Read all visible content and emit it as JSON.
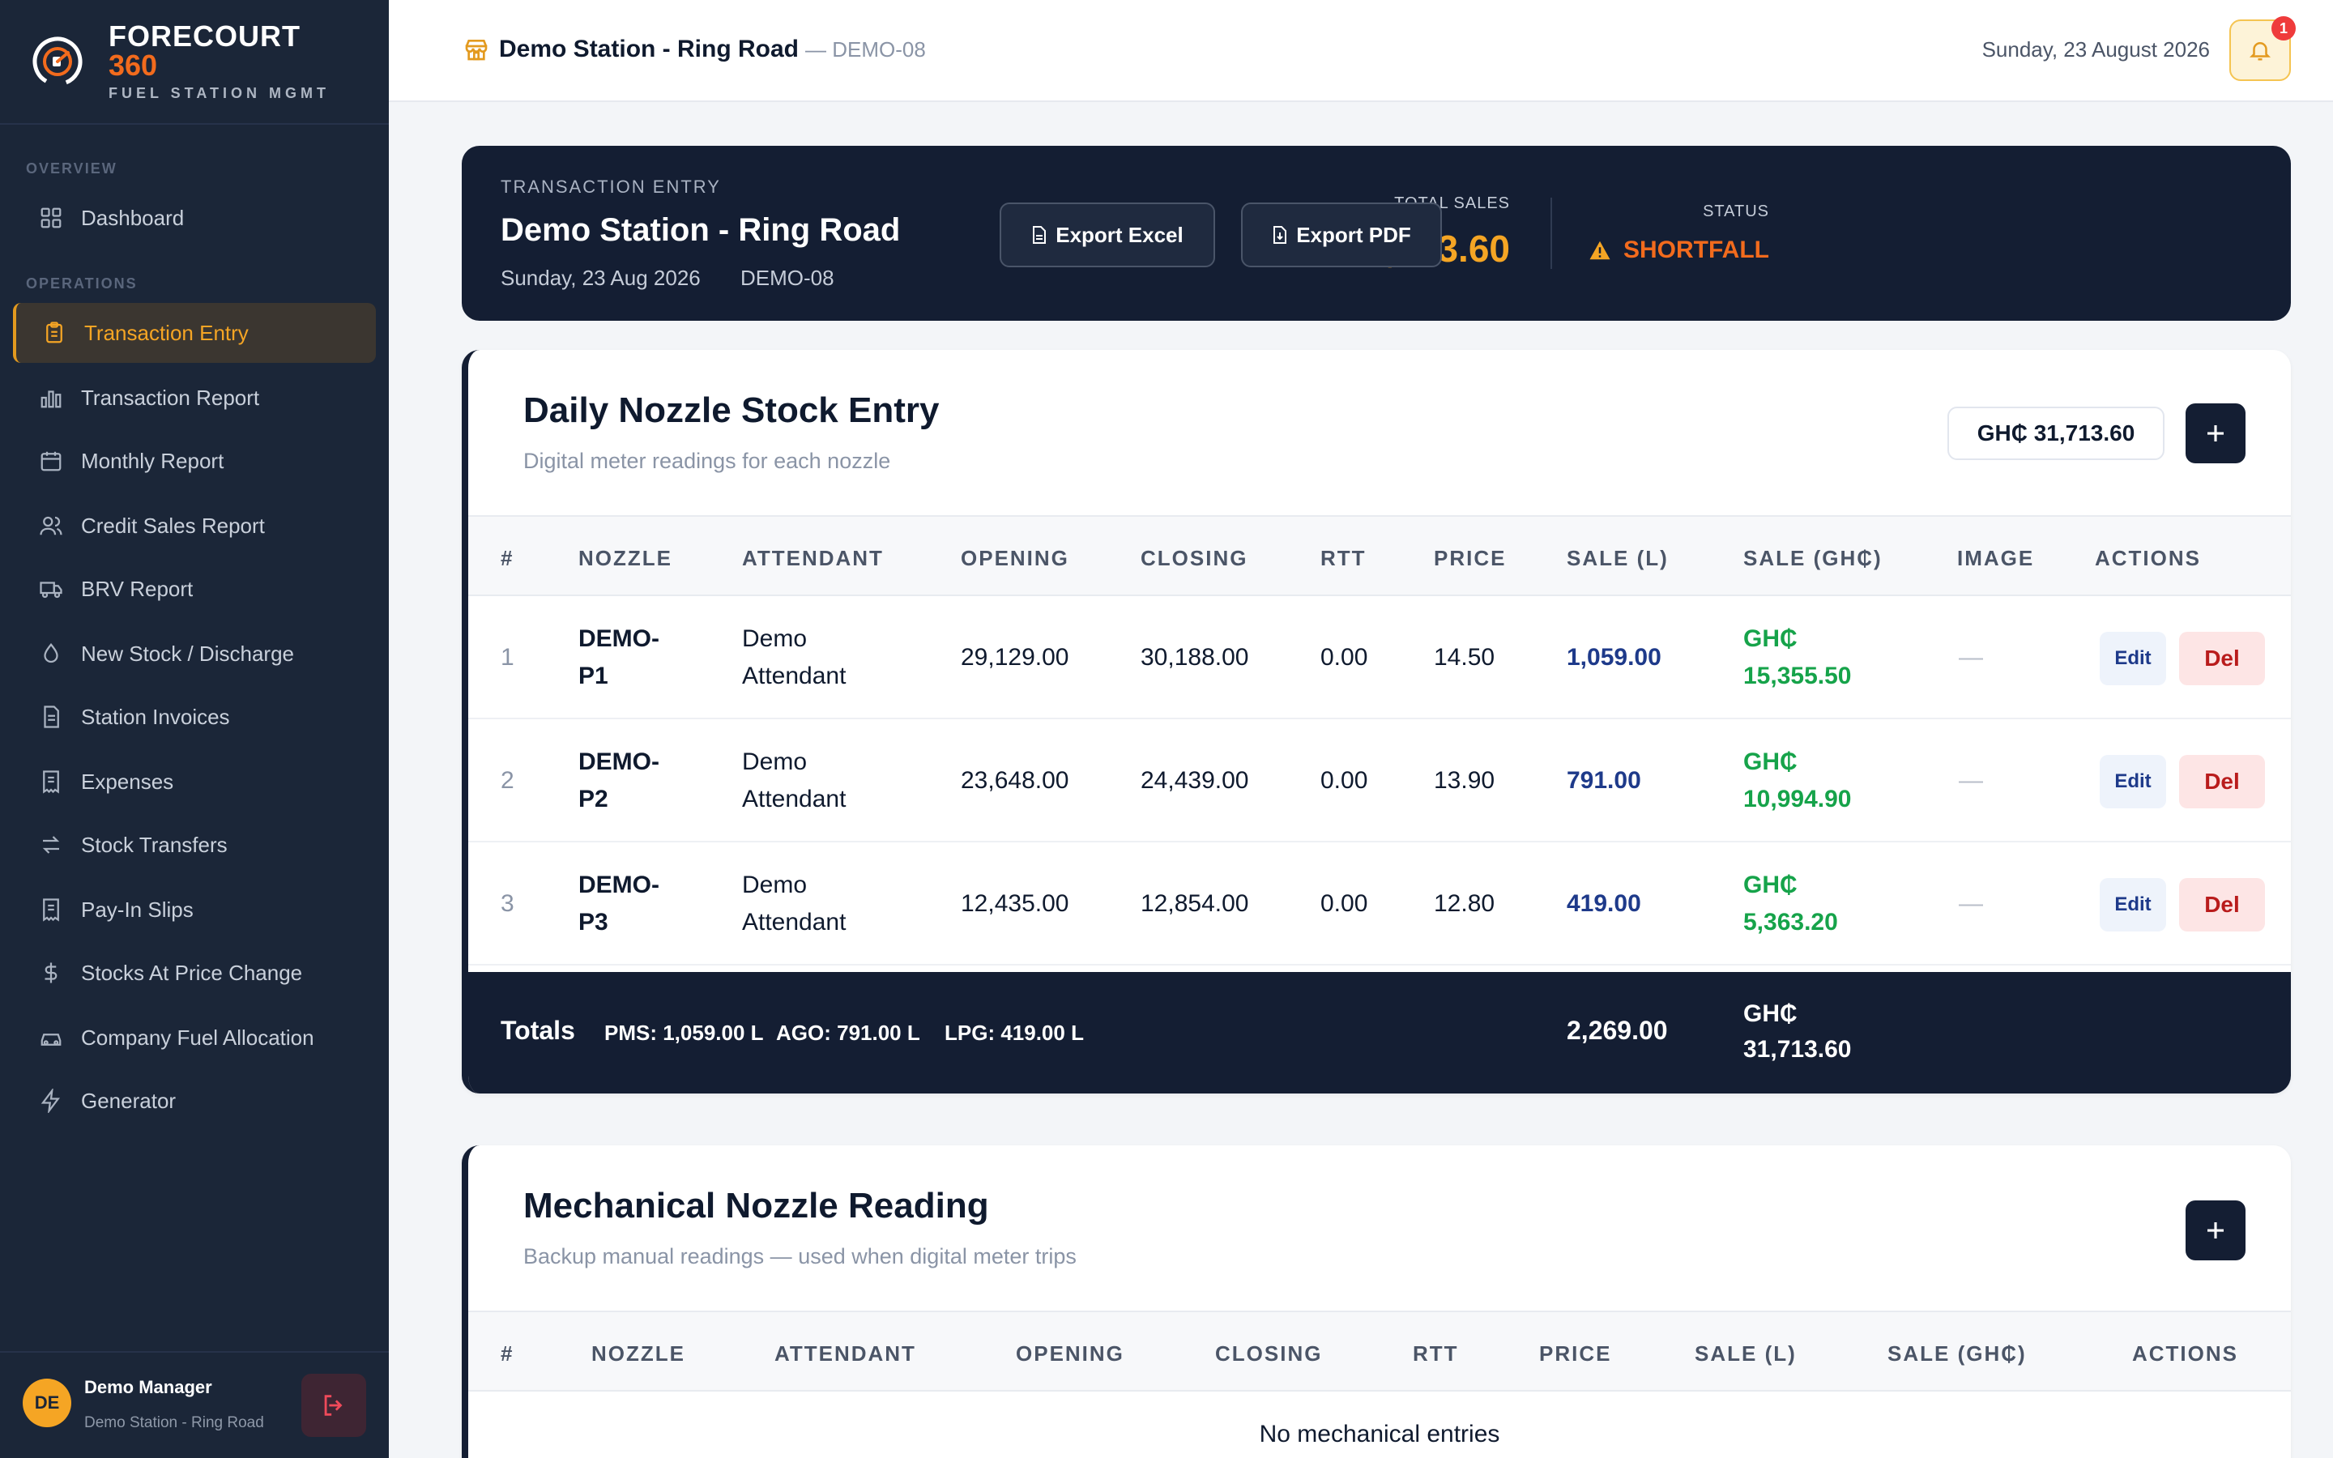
{
  "brand": {
    "name_line1": "FORECOURT",
    "name_line2": "360",
    "tagline": "FUEL STATION MGMT",
    "accent": "#f26b1d"
  },
  "sidebar": {
    "sections": {
      "overview": "OVERVIEW",
      "operations": "OPERATIONS"
    },
    "items": [
      {
        "label": "Dashboard",
        "icon": "grid-icon"
      },
      {
        "label": "Transaction Entry",
        "icon": "clipboard-icon",
        "active": true
      },
      {
        "label": "Transaction Report",
        "icon": "bar-chart-icon"
      },
      {
        "label": "Monthly Report",
        "icon": "calendar-icon"
      },
      {
        "label": "Credit Sales Report",
        "icon": "users-icon"
      },
      {
        "label": "BRV Report",
        "icon": "truck-icon"
      },
      {
        "label": "New Stock / Discharge",
        "icon": "droplet-icon"
      },
      {
        "label": "Station Invoices",
        "icon": "file-icon"
      },
      {
        "label": "Expenses",
        "icon": "receipt-icon"
      },
      {
        "label": "Stock Transfers",
        "icon": "transfer-icon"
      },
      {
        "label": "Pay-In Slips",
        "icon": "receipt-icon"
      },
      {
        "label": "Stocks At Price Change",
        "icon": "dollar-icon"
      },
      {
        "label": "Company Fuel Allocation",
        "icon": "car-icon"
      },
      {
        "label": "Generator",
        "icon": "lightning-icon"
      }
    ]
  },
  "user": {
    "initials": "DE",
    "name": "Demo Manager",
    "station": "Demo Station - Ring Road"
  },
  "topbar": {
    "station": "Demo Station - Ring Road",
    "code": "— DEMO-08",
    "date": "Sunday, 23 August 2026",
    "notifications": "1"
  },
  "hero": {
    "label": "TRANSACTION ENTRY",
    "title": "Demo Station - Ring Road",
    "date": "Sunday, 23 Aug 2026",
    "code": "DEMO-08",
    "total_sales_label": "TOTAL SALES",
    "total_sales": "GH₵ 31,713.60",
    "status_label": "STATUS",
    "status": "SHORTFALL",
    "export_excel": "Export Excel",
    "export_pdf": "Export PDF"
  },
  "daily": {
    "title": "Daily Nozzle Stock Entry",
    "subtitle": "Digital meter readings for each nozzle",
    "total_pill": "GH₵ 31,713.60",
    "columns": [
      "#",
      "NOZZLE",
      "ATTENDANT",
      "OPENING",
      "CLOSING",
      "RTT",
      "PRICE",
      "SALE (L)",
      "SALE (GH₵)",
      "IMAGE",
      "ACTIONS"
    ],
    "rows": [
      {
        "idx": "1",
        "nozzle_a": "DEMO-",
        "nozzle_b": "P1",
        "att_a": "Demo",
        "att_b": "Attendant",
        "opening": "29,129.00",
        "closing": "30,188.00",
        "rtt": "0.00",
        "price": "14.50",
        "sale_l": "1,059.00",
        "ghs_a": "GH₵",
        "ghs_b": "15,355.50",
        "image": "—"
      },
      {
        "idx": "2",
        "nozzle_a": "DEMO-",
        "nozzle_b": "P2",
        "att_a": "Demo",
        "att_b": "Attendant",
        "opening": "23,648.00",
        "closing": "24,439.00",
        "rtt": "0.00",
        "price": "13.90",
        "sale_l": "791.00",
        "ghs_a": "GH₵",
        "ghs_b": "10,994.90",
        "image": "—"
      },
      {
        "idx": "3",
        "nozzle_a": "DEMO-",
        "nozzle_b": "P3",
        "att_a": "Demo",
        "att_b": "Attendant",
        "opening": "12,435.00",
        "closing": "12,854.00",
        "rtt": "0.00",
        "price": "12.80",
        "sale_l": "419.00",
        "ghs_a": "GH₵",
        "ghs_b": "5,363.20",
        "image": "—"
      }
    ],
    "actions": {
      "edit": "Edit",
      "del": "Del"
    },
    "totals": {
      "label": "Totals",
      "pms": "PMS: 1,059.00 L",
      "ago": "AGO: 791.00 L",
      "lpg": "LPG: 419.00 L",
      "sale_l": "2,269.00",
      "ghs_a": "GH₵",
      "ghs_b": "31,713.60"
    }
  },
  "mechanical": {
    "title": "Mechanical Nozzle Reading",
    "subtitle": "Backup manual readings — used when digital meter trips",
    "columns": [
      "#",
      "NOZZLE",
      "ATTENDANT",
      "OPENING",
      "CLOSING",
      "RTT",
      "PRICE",
      "SALE (L)",
      "SALE (GH₵)",
      "ACTIONS"
    ],
    "empty": "No mechanical entries"
  }
}
